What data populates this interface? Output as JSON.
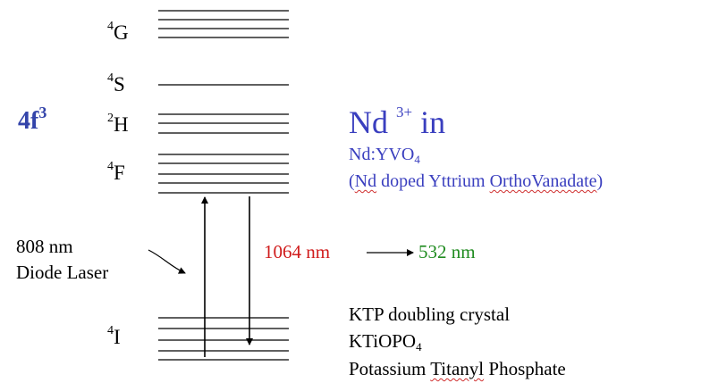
{
  "levels": [
    {
      "name": "G",
      "multiplicity": "4"
    },
    {
      "name": "S",
      "multiplicity": "4"
    },
    {
      "name": "H",
      "multiplicity": "2"
    },
    {
      "name": "F",
      "multiplicity": "4"
    },
    {
      "name": "I",
      "multiplicity": "4"
    }
  ],
  "configuration": {
    "text": "4f",
    "superscript": "3"
  },
  "title": {
    "ion": "Nd",
    "charge": "3+",
    "preposition": "in"
  },
  "host": {
    "formula_main": "Nd:YVO",
    "formula_sub": "4",
    "name_open": "(",
    "name_nd": "Nd",
    "name_mid": " doped Yttrium ",
    "name_ortho": "OrthoVanadate",
    "name_close": ")"
  },
  "pump": {
    "line1": "808 nm",
    "line2": "Diode Laser"
  },
  "emission": {
    "wavelength": "1064 nm",
    "doubled": "532 nm"
  },
  "crystal": {
    "line1": "KTP doubling  crystal",
    "formula_main": "KTiOPO",
    "formula_sub": "4",
    "line3_a": "Potassium ",
    "line3_b": "Titanyl",
    "line3_c": " Phosphate"
  },
  "colors": {
    "config": "#3344aa",
    "title": "#3a3fbf",
    "red": "#d01c1c",
    "green": "#1f8b1f"
  }
}
